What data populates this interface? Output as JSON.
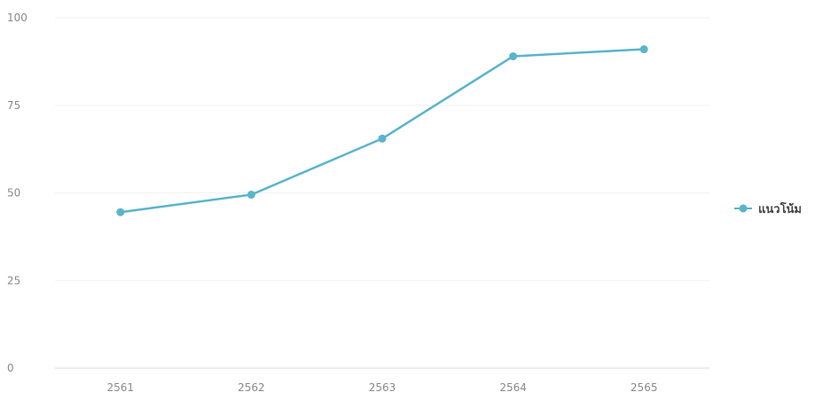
{
  "chart_data": {
    "type": "line",
    "title": "",
    "xlabel": "",
    "ylabel": "",
    "categories": [
      "2561",
      "2562",
      "2563",
      "2564",
      "2565"
    ],
    "series": [
      {
        "name": "แนวโน้ม",
        "color": "#5ab4cc",
        "values": [
          44.5,
          49.5,
          65.5,
          89,
          91
        ]
      }
    ],
    "ylim": [
      0,
      100
    ],
    "yticks": [
      "0",
      "25",
      "50",
      "75",
      "100"
    ],
    "grid": true,
    "legend_position": "right"
  }
}
